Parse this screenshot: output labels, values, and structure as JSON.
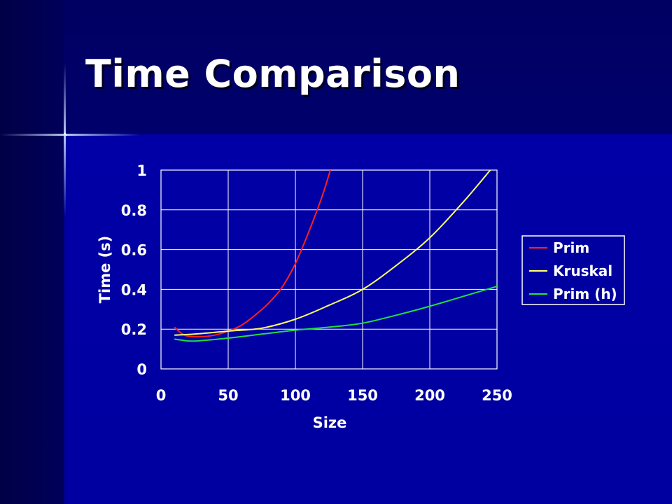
{
  "slide": {
    "title": "Time Comparison"
  },
  "colors": {
    "background": "#0000a0",
    "grid": "#ffffff",
    "prim": "#ff2020",
    "kruskal": "#ffff66",
    "prim_h": "#22dd44"
  },
  "chart_data": {
    "type": "line",
    "title": "",
    "xlabel": "Size",
    "ylabel": "Time (s)",
    "xlim": [
      0,
      250
    ],
    "ylim": [
      0,
      1
    ],
    "x_ticks": [
      0,
      50,
      100,
      150,
      200,
      250
    ],
    "y_ticks": [
      0,
      0.2,
      0.4,
      0.6,
      0.8,
      1
    ],
    "y_tick_labels": [
      "0",
      "0.2",
      "0.4",
      "0.6",
      "0.8",
      "1"
    ],
    "grid": true,
    "legend_position": "right",
    "series": [
      {
        "name": "Prim",
        "color": "#ff2020",
        "x": [
          10,
          15,
          20,
          30,
          40,
          50,
          60,
          70,
          80,
          90,
          100,
          110,
          120,
          126
        ],
        "y": [
          0.21,
          0.18,
          0.165,
          0.162,
          0.17,
          0.19,
          0.22,
          0.27,
          0.33,
          0.41,
          0.53,
          0.69,
          0.87,
          1.0
        ]
      },
      {
        "name": "Kruskal",
        "color": "#ffff66",
        "x": [
          10,
          25,
          50,
          75,
          100,
          125,
          150,
          175,
          200,
          225,
          245
        ],
        "y": [
          0.17,
          0.175,
          0.19,
          0.205,
          0.25,
          0.32,
          0.4,
          0.52,
          0.66,
          0.84,
          1.0
        ]
      },
      {
        "name": "Prim (h)",
        "color": "#22dd44",
        "x": [
          10,
          15,
          25,
          50,
          75,
          100,
          125,
          150,
          175,
          200,
          225,
          250
        ],
        "y": [
          0.15,
          0.145,
          0.14,
          0.155,
          0.175,
          0.195,
          0.21,
          0.23,
          0.27,
          0.315,
          0.365,
          0.415
        ]
      }
    ]
  }
}
